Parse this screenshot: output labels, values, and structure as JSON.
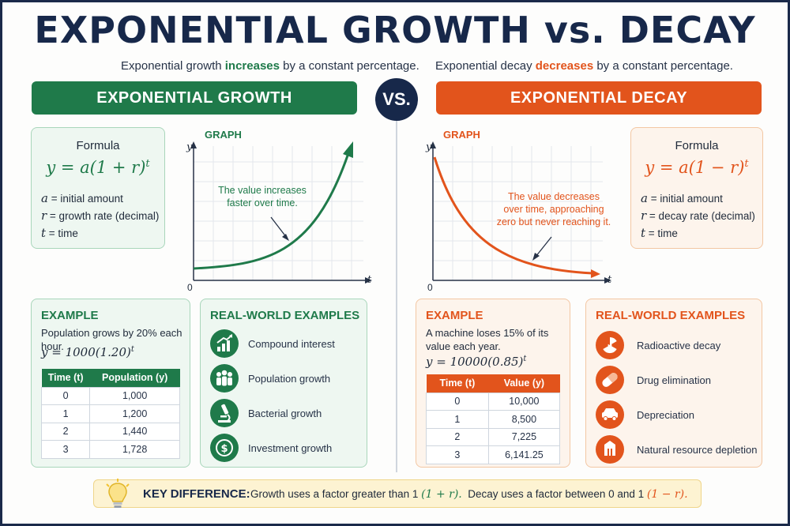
{
  "title": "EXPONENTIAL GROWTH vs. DECAY",
  "vs_label": "VS.",
  "growth": {
    "subtitle": {
      "pre": "Exponential growth ",
      "highlight": "increases",
      "post": " by a constant percentage."
    },
    "banner": "EXPONENTIAL GROWTH",
    "formula_label": "Formula",
    "formula": "y = a(1 + r)",
    "formula_exp": "t",
    "definitions": [
      {
        "var": "a",
        "text": " = initial amount"
      },
      {
        "var": "r",
        "text": " = growth rate (decimal)"
      },
      {
        "var": "t",
        "text": " = time"
      }
    ],
    "graph": {
      "label": "GRAPH",
      "y_axis": "y",
      "x_axis": "t",
      "origin": "0",
      "annotation": [
        "The value increases",
        "faster over time."
      ]
    },
    "example": {
      "title": "EXAMPLE",
      "text": "Population grows by 20% each hour.",
      "formula": "y = 1000(1.20)",
      "formula_exp": "t",
      "table": {
        "headers": [
          "Time (t)",
          "Population (y)"
        ],
        "rows": [
          [
            "0",
            "1,000"
          ],
          [
            "1",
            "1,200"
          ],
          [
            "2",
            "1,440"
          ],
          [
            "3",
            "1,728"
          ]
        ]
      }
    },
    "real_world": {
      "title": "REAL-WORLD EXAMPLES",
      "items": [
        {
          "label": "Compound interest",
          "icon": "rising-bar-chart-icon"
        },
        {
          "label": "Population growth",
          "icon": "people-group-icon"
        },
        {
          "label": "Bacterial growth",
          "icon": "microscope-icon"
        },
        {
          "label": "Investment growth",
          "icon": "dollar-coin-icon"
        }
      ]
    }
  },
  "decay": {
    "subtitle": {
      "pre": "Exponential decay ",
      "highlight": "decreases",
      "post": " by a constant percentage."
    },
    "banner": "EXPONENTIAL DECAY",
    "formula_label": "Formula",
    "formula": "y = a(1 − r)",
    "formula_exp": "t",
    "definitions": [
      {
        "var": "a",
        "text": " = initial amount"
      },
      {
        "var": "r",
        "text": " = decay rate (decimal)"
      },
      {
        "var": "t",
        "text": " = time"
      }
    ],
    "graph": {
      "label": "GRAPH",
      "y_axis": "y",
      "x_axis": "t",
      "origin": "0",
      "annotation": [
        "The value decreases",
        "over time, approaching",
        "zero but never reaching it."
      ]
    },
    "example": {
      "title": "EXAMPLE",
      "text_lines": [
        "A machine loses 15% of its",
        "value each year."
      ],
      "formula": "y = 10000(0.85)",
      "formula_exp": "t",
      "table": {
        "headers": [
          "Time (t)",
          "Value (y)"
        ],
        "rows": [
          [
            "0",
            "10,000"
          ],
          [
            "1",
            "8,500"
          ],
          [
            "2",
            "7,225"
          ],
          [
            "3",
            "6,141.25"
          ]
        ]
      }
    },
    "real_world": {
      "title": "REAL-WORLD EXAMPLES",
      "items": [
        {
          "label": "Radioactive decay",
          "icon": "radiation-icon"
        },
        {
          "label": "Drug elimination",
          "icon": "capsule-icon"
        },
        {
          "label": "Depreciation",
          "icon": "car-icon"
        },
        {
          "label": "Natural resource depletion",
          "icon": "resource-icon"
        }
      ]
    }
  },
  "key_difference": {
    "label": "KEY DIFFERENCE:",
    "growth_text": "Growth uses a factor greater than 1",
    "growth_factor": "(1 + r).",
    "decay_text": "Decay uses a factor between 0 and 1",
    "decay_factor": "(1 − r)."
  },
  "colors": {
    "growth": "#1f7a4a",
    "decay": "#e2541c",
    "navy": "#17284a"
  }
}
